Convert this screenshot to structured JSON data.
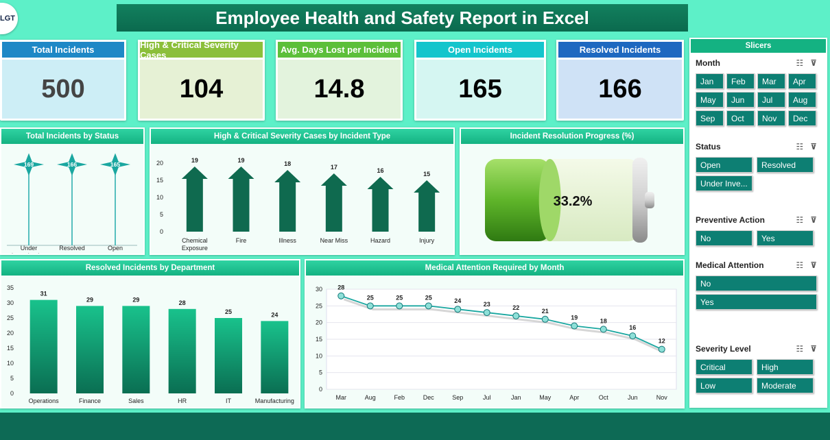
{
  "logo": {
    "text": "LGT"
  },
  "title": "Employee Health and Safety Report in Excel",
  "kpis": [
    {
      "label": "Total Incidents",
      "value": "500",
      "color": "#1e88c6",
      "bg": "#cdeef6",
      "valcolor": "#444"
    },
    {
      "label": "High & Critical Severity Cases",
      "value": "104",
      "color": "#8bbf3a",
      "bg": "#e6f1d5",
      "valcolor": "#000"
    },
    {
      "label": "Avg. Days Lost per Incident",
      "value": "14.8",
      "color": "#5cbf3a",
      "bg": "#e3f3dd",
      "valcolor": "#000"
    },
    {
      "label": "Open Incidents",
      "value": "165",
      "color": "#14c5cc",
      "bg": "#d5f6f2",
      "valcolor": "#000"
    },
    {
      "label": "Resolved Incidents",
      "value": "166",
      "color": "#1e68c0",
      "bg": "#cfe2f6",
      "valcolor": "#000"
    }
  ],
  "panels": {
    "status": "Total Incidents by Status",
    "severity": "High & Critical Severity Cases by Incident Type",
    "progress": "Incident Resolution Progress (%)",
    "department": "Resolved Incidents by Department",
    "medical": "Medical Attention Required by Month"
  },
  "chart_data": [
    {
      "id": "status",
      "type": "scatter",
      "title": "Total Incidents by Status",
      "categories": [
        "Under Investigation",
        "Resolved",
        "Open"
      ],
      "values": [
        169,
        166,
        165
      ]
    },
    {
      "id": "severity",
      "type": "bar",
      "title": "High & Critical Severity Cases by Incident Type",
      "categories": [
        "Chemical Exposure",
        "Fire",
        "Illness",
        "Near Miss",
        "Hazard",
        "Injury"
      ],
      "values": [
        19,
        19,
        18,
        17,
        16,
        15
      ],
      "ylim": [
        0,
        20
      ],
      "yticks": [
        0,
        5,
        10,
        15,
        20
      ]
    },
    {
      "id": "progress",
      "type": "bar",
      "title": "Incident Resolution Progress (%)",
      "values": [
        33.2
      ],
      "label": "33.2%"
    },
    {
      "id": "department",
      "type": "bar",
      "title": "Resolved Incidents by Department",
      "categories": [
        "Operations",
        "Finance",
        "Sales",
        "HR",
        "IT",
        "Manufacturing"
      ],
      "values": [
        31,
        29,
        29,
        28,
        25,
        24
      ],
      "ylim": [
        0,
        35
      ],
      "yticks": [
        0,
        5,
        10,
        15,
        20,
        25,
        30,
        35
      ]
    },
    {
      "id": "medical",
      "type": "line",
      "title": "Medical Attention Required by Month",
      "categories": [
        "Mar",
        "Aug",
        "Feb",
        "Dec",
        "Sep",
        "Jul",
        "Jan",
        "May",
        "Apr",
        "Oct",
        "Jun",
        "Nov"
      ],
      "values": [
        28,
        25,
        25,
        25,
        24,
        23,
        22,
        21,
        19,
        18,
        16,
        12
      ],
      "ylim": [
        0,
        30
      ],
      "yticks": [
        0,
        5,
        10,
        15,
        20,
        25,
        30
      ]
    }
  ],
  "slicers": {
    "title": "Slicers",
    "groups": [
      {
        "name": "Month",
        "items": [
          "Jan",
          "Feb",
          "Mar",
          "Apr",
          "May",
          "Jun",
          "Jul",
          "Aug",
          "Sep",
          "Oct",
          "Nov",
          "Dec"
        ]
      },
      {
        "name": "Status",
        "items": [
          "Open",
          "Resolved",
          "Under Inve..."
        ]
      },
      {
        "name": "Preventive Action",
        "items": [
          "No",
          "Yes"
        ]
      },
      {
        "name": "Medical Attention",
        "items": [
          "No",
          "Yes"
        ]
      },
      {
        "name": "Severity Level",
        "items": [
          "Critical",
          "High",
          "Low",
          "Moderate"
        ]
      }
    ]
  }
}
